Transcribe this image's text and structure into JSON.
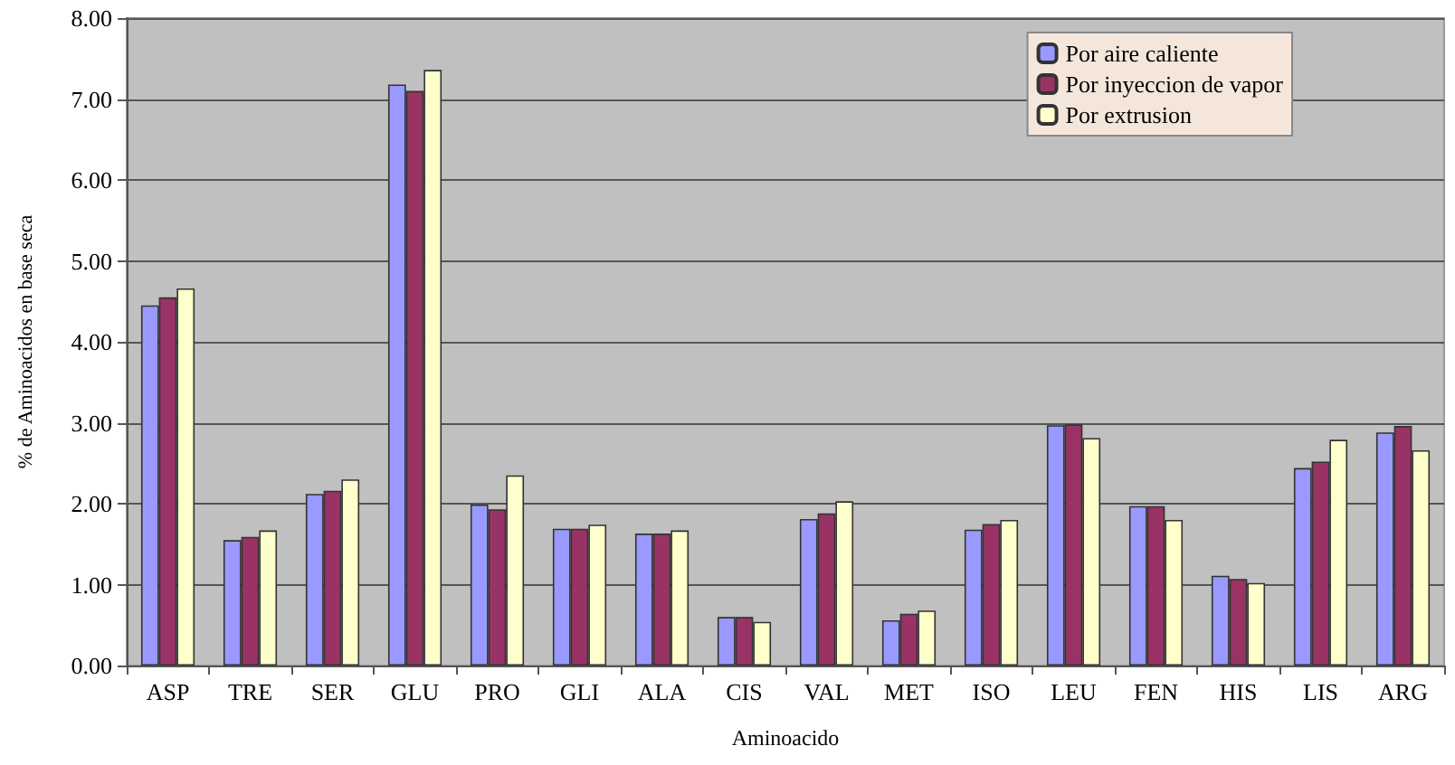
{
  "chart_data": {
    "type": "bar",
    "xlabel": "Aminoacido",
    "ylabel": "% de Aminoacidos en base seca",
    "categories": [
      "ASP",
      "TRE",
      "SER",
      "GLU",
      "PRO",
      "GLI",
      "ALA",
      "CIS",
      "VAL",
      "MET",
      "ISO",
      "LEU",
      "FEN",
      "HIS",
      "LIS",
      "ARG"
    ],
    "series": [
      {
        "name": "Por aire caliente",
        "color": "#9999ff",
        "values": [
          4.45,
          1.55,
          2.12,
          7.18,
          1.99,
          1.69,
          1.63,
          0.6,
          1.81,
          0.56,
          1.68,
          2.97,
          1.97,
          1.11,
          2.44,
          2.88
        ]
      },
      {
        "name": "Por inyeccion de vapor",
        "color": "#993366",
        "values": [
          4.55,
          1.59,
          2.16,
          7.1,
          1.93,
          1.69,
          1.63,
          0.6,
          1.88,
          0.64,
          1.75,
          2.98,
          1.97,
          1.07,
          2.52,
          2.96
        ]
      },
      {
        "name": "Por extrusion",
        "color": "#ffffcc",
        "values": [
          4.66,
          1.67,
          2.3,
          7.36,
          2.35,
          1.74,
          1.67,
          0.54,
          2.03,
          0.68,
          1.8,
          2.81,
          1.8,
          1.02,
          2.79,
          2.66
        ]
      }
    ],
    "ylim": [
      0,
      8
    ],
    "yticks": [
      {
        "value": 0,
        "label": "0.00"
      },
      {
        "value": 1,
        "label": "1.00"
      },
      {
        "value": 2,
        "label": "2.00"
      },
      {
        "value": 3,
        "label": "3.00"
      },
      {
        "value": 4,
        "label": "4.00"
      },
      {
        "value": 5,
        "label": "5.00"
      },
      {
        "value": 6,
        "label": "6.00"
      },
      {
        "value": 7,
        "label": "7.00"
      },
      {
        "value": 8,
        "label": "8.00"
      }
    ],
    "grid": "y",
    "legend": "top right"
  }
}
